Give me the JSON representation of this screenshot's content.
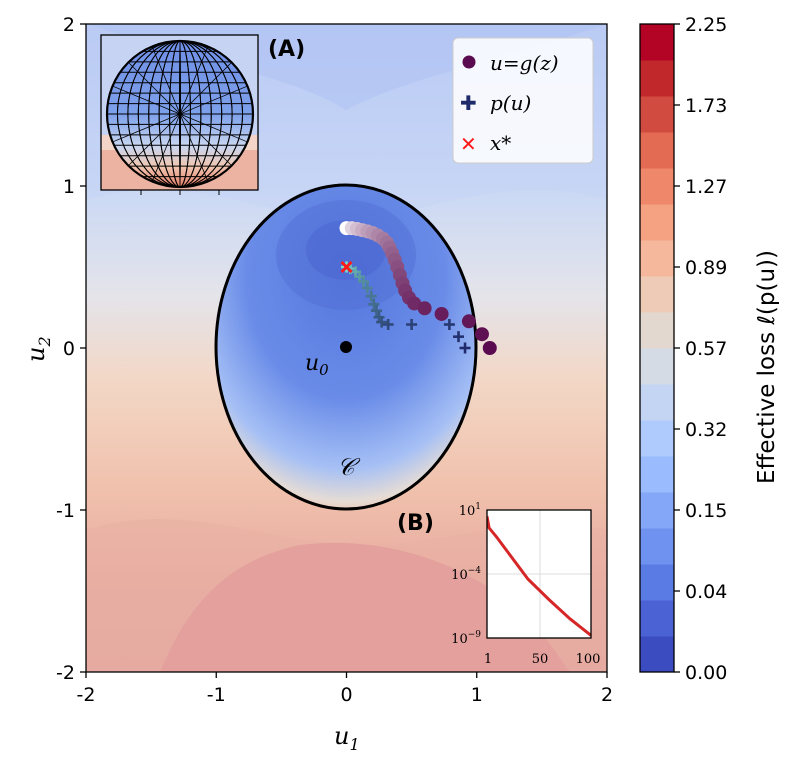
{
  "chart_data": {
    "type": "contour",
    "title": "",
    "xlabel": "u1",
    "ylabel": "u2",
    "xlim": [
      -2,
      2
    ],
    "ylim": [
      -2,
      2
    ],
    "x_ticks": [
      "-2",
      "-1",
      "0",
      "1",
      "2"
    ],
    "y_ticks": [
      "-2",
      "-1",
      "0",
      "1",
      "2"
    ],
    "x_tick_values": [
      -2,
      -1,
      0,
      1,
      2
    ],
    "y_tick_values": [
      -2,
      -1,
      0,
      1,
      2
    ],
    "colorbar": {
      "label": "Effective loss ℓ(p(u))",
      "tick_labels": [
        "0.00",
        "0.04",
        "0.15",
        "0.32",
        "0.57",
        "0.89",
        "1.27",
        "1.73",
        "2.25"
      ],
      "range": [
        0,
        2.25
      ],
      "colormap": "coolwarm",
      "colors_low_to_high": [
        "#3b4cc0",
        "#4a62d4",
        "#5b7be4",
        "#6f91f0",
        "#84a7f8",
        "#9abbfd",
        "#afcafc",
        "#c4d5f3",
        "#d5dbe5",
        "#e3d8cf",
        "#eecbb7",
        "#f5b89c",
        "#f5a282",
        "#ef886a",
        "#e36a53",
        "#d24b40",
        "#c0282c",
        "#b40426"
      ]
    },
    "ellipse": {
      "label": "C",
      "center": [
        0,
        0
      ],
      "semi_axes": [
        1.0,
        1.0
      ],
      "color": "#000000"
    },
    "origin_point": {
      "label": "u0",
      "x": 0,
      "y": 0,
      "color": "#000000"
    },
    "series": [
      {
        "name": "u = g(z)",
        "marker": "circle",
        "points": [
          [
            0.0,
            0.74
          ],
          [
            0.04,
            0.74
          ],
          [
            0.08,
            0.735
          ],
          [
            0.12,
            0.728
          ],
          [
            0.16,
            0.72
          ],
          [
            0.2,
            0.71
          ],
          [
            0.24,
            0.695
          ],
          [
            0.28,
            0.675
          ],
          [
            0.31,
            0.65
          ],
          [
            0.33,
            0.62
          ],
          [
            0.35,
            0.585
          ],
          [
            0.37,
            0.545
          ],
          [
            0.39,
            0.5
          ],
          [
            0.41,
            0.45
          ],
          [
            0.43,
            0.4
          ],
          [
            0.45,
            0.355
          ],
          [
            0.48,
            0.31
          ],
          [
            0.52,
            0.275
          ],
          [
            0.6,
            0.245
          ],
          [
            0.73,
            0.21
          ],
          [
            0.94,
            0.165
          ],
          [
            1.04,
            0.085
          ],
          [
            1.1,
            0.0
          ]
        ],
        "color_start": "#ffffff",
        "color_end": "#5a0a4e"
      },
      {
        "name": "p(u)",
        "marker": "plus",
        "points": [
          [
            0.0,
            0.5
          ],
          [
            0.03,
            0.49
          ],
          [
            0.07,
            0.47
          ],
          [
            0.1,
            0.44
          ],
          [
            0.13,
            0.41
          ],
          [
            0.16,
            0.37
          ],
          [
            0.19,
            0.32
          ],
          [
            0.21,
            0.27
          ],
          [
            0.23,
            0.23
          ],
          [
            0.25,
            0.19
          ],
          [
            0.27,
            0.16
          ],
          [
            0.32,
            0.145
          ],
          [
            0.5,
            0.145
          ],
          [
            0.79,
            0.145
          ],
          [
            0.86,
            0.07
          ],
          [
            0.91,
            0.0
          ]
        ],
        "color_start": "#7fe0c8",
        "color_end": "#1f2a6b"
      },
      {
        "name": "x*",
        "marker": "x",
        "points": [
          [
            0.0,
            0.5
          ]
        ],
        "color": "#ff1a1a"
      }
    ],
    "legend": {
      "placement": "top-right",
      "entries": [
        "u=g(z)",
        "p(u)",
        "x*"
      ]
    },
    "insets": [
      {
        "label": "(A)",
        "type": "image",
        "description_text": "",
        "placement": "top-left"
      },
      {
        "label": "(B)",
        "type": "line",
        "x_ticks": [
          "1",
          "50",
          "100"
        ],
        "y_ticks": [
          "10^1",
          "10^-4",
          "10^-9"
        ],
        "xlim": [
          1,
          100
        ],
        "y_log_range": [
          -9,
          1
        ],
        "line_color": "#d62728",
        "values_log10": [
          [
            1,
            0.5
          ],
          [
            3,
            -0.4
          ],
          [
            6,
            -0.7
          ],
          [
            10,
            -1.1
          ],
          [
            20,
            -2.2
          ],
          [
            40,
            -4.4
          ],
          [
            60,
            -6.0
          ],
          [
            80,
            -7.5
          ],
          [
            100,
            -8.8
          ]
        ],
        "placement": "bottom-right"
      }
    ]
  }
}
